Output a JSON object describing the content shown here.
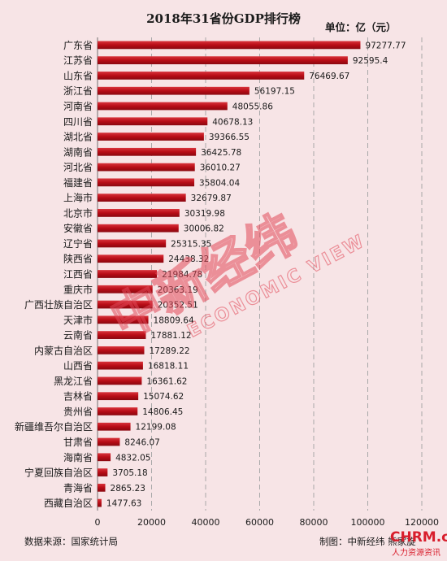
{
  "chart_data": {
    "type": "bar",
    "orientation": "horizontal",
    "title": "2018年31省份GDP排行榜",
    "unit": "单位：亿（元）",
    "categories": [
      "广东省",
      "江苏省",
      "山东省",
      "浙江省",
      "河南省",
      "四川省",
      "湖北省",
      "湖南省",
      "河北省",
      "福建省",
      "上海市",
      "北京市",
      "安徽省",
      "辽宁省",
      "陕西省",
      "江西省",
      "重庆市",
      "广西壮族自治区",
      "天津市",
      "云南省",
      "内蒙古自治区",
      "山西省",
      "黑龙江省",
      "吉林省",
      "贵州省",
      "新疆维吾尔自治区",
      "甘肃省",
      "海南省",
      "宁夏回族自治区",
      "青海省",
      "西藏自治区"
    ],
    "values": [
      97277.77,
      92595.4,
      76469.67,
      56197.15,
      48055.86,
      40678.13,
      39366.55,
      36425.78,
      36010.27,
      35804.04,
      32679.87,
      30319.98,
      30006.82,
      25315.35,
      24438.32,
      21984.78,
      20363.19,
      20352.51,
      18809.64,
      17881.12,
      17289.22,
      16818.11,
      16361.62,
      15074.62,
      14806.45,
      12199.08,
      8246.07,
      4832.05,
      3705.18,
      2865.23,
      1477.63
    ],
    "value_labels": [
      "97277.77",
      "92595.4",
      "76469.67",
      "56197.15",
      "48055.86",
      "40678.13",
      "39366.55",
      "36425.78",
      "36010.27",
      "35804.04",
      "32679.87",
      "30319.98",
      "30006.82",
      "25315.35",
      "24438.32",
      "21984.78",
      "20363.19",
      "20352.51",
      "18809.64",
      "17881.12",
      "17289.22",
      "16818.11",
      "16361.62",
      "15074.62",
      "14806.45",
      "12199.08",
      "8246.07",
      "4832.05",
      "3705.18",
      "2865.23",
      "1477.63"
    ],
    "xlim": [
      0,
      120000
    ],
    "xticks": [
      "0",
      "20000",
      "40000",
      "60000",
      "80000",
      "100000",
      "120000"
    ],
    "grid": true,
    "bar_color": "#c0101a"
  },
  "watermark": {
    "brand_cn": "中新经纬",
    "brand_en": "ECONOMIC VIEW"
  },
  "footer": {
    "source": "数据来源：国家统计局",
    "credit": "制图：中新经纬 熊家旋"
  },
  "logo": {
    "text": "CHRM.cn",
    "tagline": "人力资源资讯"
  }
}
